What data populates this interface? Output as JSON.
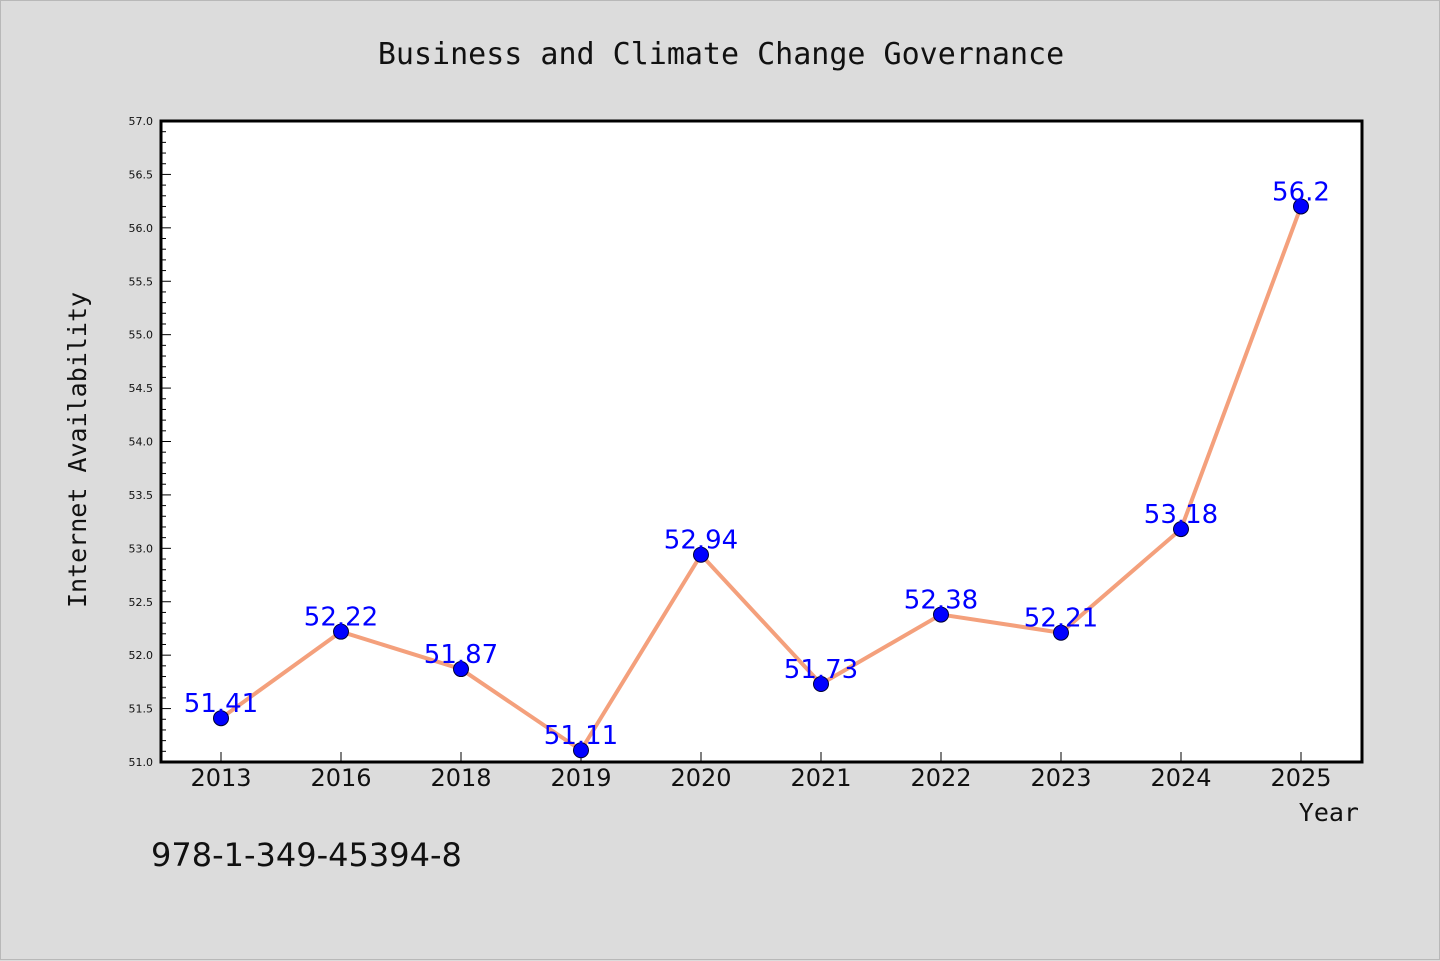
{
  "chart_data": {
    "type": "line",
    "title": "Business and Climate Change Governance",
    "xlabel": "Year",
    "ylabel": "Internet Availability",
    "categories": [
      "2013",
      "2016",
      "2018",
      "2019",
      "2020",
      "2021",
      "2022",
      "2023",
      "2024",
      "2025"
    ],
    "series": [
      {
        "values": [
          51.41,
          52.22,
          51.87,
          51.11,
          52.94,
          51.73,
          52.38,
          52.21,
          53.18,
          56.2
        ],
        "labels": [
          "51.41",
          "52.22",
          "51.87",
          "51.11",
          "52.94",
          "51.73",
          "52.38",
          "52.21",
          "53.18",
          "56.2"
        ],
        "line_color": "#f4a07c",
        "marker_color": "#0000ff"
      }
    ],
    "ylim": [
      51.0,
      57.0
    ],
    "yticks": [
      "51.0",
      "51.5",
      "52.0",
      "52.5",
      "53.0",
      "53.5",
      "54.0",
      "54.5",
      "55.0",
      "55.5",
      "56.0",
      "56.5",
      "57.0"
    ],
    "grid": false,
    "legend": "none",
    "annotation": "978-1-349-45394-8"
  },
  "colors": {
    "background": "#dcdcdc",
    "plot_background": "#ffffff",
    "line": "#f4a07c",
    "marker": "#0000ff",
    "data_label": "#0000ff"
  }
}
